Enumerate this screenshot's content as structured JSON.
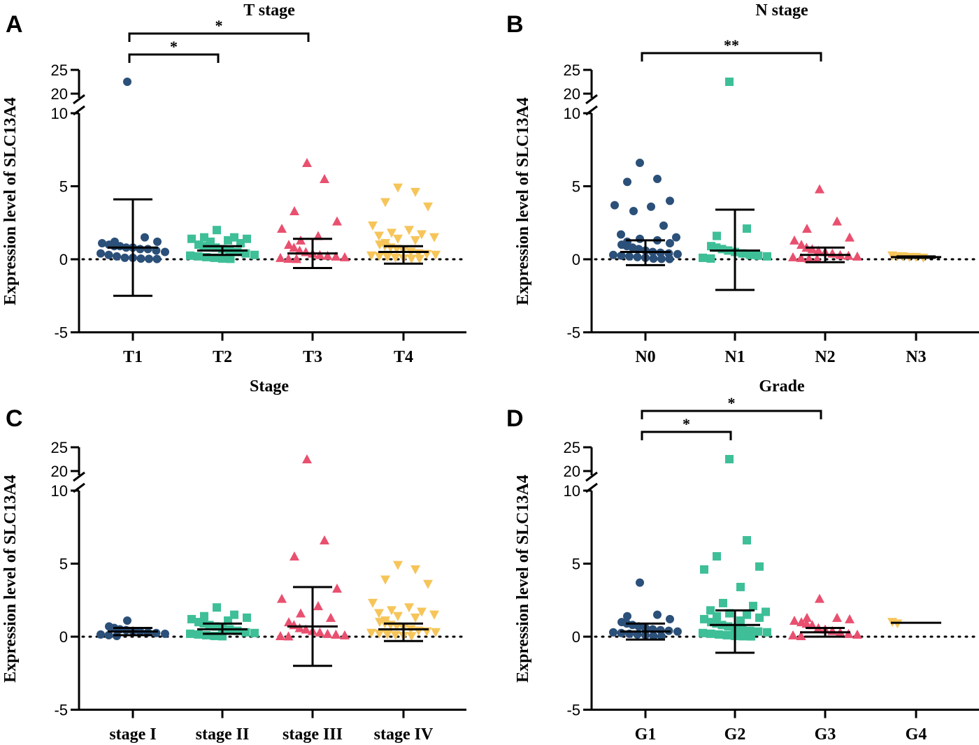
{
  "colors": {
    "group1": "#2b5079",
    "group2": "#3ebf97",
    "group3": "#e9506f",
    "group4": "#f6c55a"
  },
  "chart_data": [
    {
      "type": "scatter",
      "panel": "A",
      "title": "T stage",
      "ylabel": "Expression level of SLC13A4",
      "yticks": [
        "-5",
        "0",
        "5",
        "10",
        "20",
        "25"
      ],
      "axis_break": [
        10,
        20
      ],
      "categories": [
        "T1",
        "T2",
        "T3",
        "T4"
      ],
      "markers": [
        "circle",
        "square",
        "triangle-up",
        "triangle-down"
      ],
      "series": [
        {
          "name": "T1",
          "mean": 0.8,
          "sd_low": -2.5,
          "sd_high": 4.1,
          "points": [
            22.5,
            1.5,
            1.2,
            1.2,
            1.1,
            1.0,
            0.9,
            0.9,
            0.8,
            0.8,
            0.7,
            0.7,
            0.6,
            0.5,
            0.4,
            0.3,
            0.2,
            0.1,
            0.1,
            0.05,
            0.03,
            0.02
          ]
        },
        {
          "name": "T2",
          "mean": 0.6,
          "sd_low": 0.3,
          "sd_high": 0.9,
          "points": [
            2.0,
            1.5,
            1.5,
            1.4,
            1.4,
            1.3,
            1.2,
            1.1,
            1.0,
            0.9,
            0.9,
            0.8,
            0.7,
            0.6,
            0.5,
            0.4,
            0.3,
            0.25,
            0.2,
            0.15,
            0.1,
            0.05,
            0.03
          ]
        },
        {
          "name": "T3",
          "mean": 0.4,
          "sd_low": -0.6,
          "sd_high": 1.4,
          "points": [
            6.6,
            5.5,
            3.3,
            2.6,
            2.1,
            1.6,
            1.3,
            1.0,
            0.8,
            0.6,
            0.5,
            0.4,
            0.3,
            0.25,
            0.2,
            0.15,
            0.1,
            0.05,
            0.03
          ]
        },
        {
          "name": "T4",
          "mean": 0.5,
          "sd_low": -0.3,
          "sd_high": 0.9,
          "points": [
            4.9,
            4.6,
            3.9,
            3.6,
            2.3,
            2.0,
            1.8,
            1.7,
            1.6,
            1.5,
            1.4,
            1.3,
            1.1,
            1.0,
            0.9,
            0.8,
            0.7,
            0.6,
            0.5,
            0.4,
            0.35,
            0.3,
            0.25,
            0.2,
            0.15,
            0.1,
            0.05,
            0.03,
            0.02
          ]
        }
      ],
      "significance": [
        {
          "from": "T1",
          "to": "T2",
          "label": "*"
        },
        {
          "from": "T1",
          "to": "T3",
          "label": "*"
        }
      ]
    },
    {
      "type": "scatter",
      "panel": "B",
      "title": "N stage",
      "ylabel": "Expression level of SLC13A4",
      "yticks": [
        "-5",
        "0",
        "5",
        "10",
        "20",
        "25"
      ],
      "axis_break": [
        10,
        20
      ],
      "categories": [
        "N0",
        "N1",
        "N2",
        "N3"
      ],
      "markers": [
        "circle",
        "square",
        "triangle-up",
        "triangle-down"
      ],
      "series": [
        {
          "name": "N0",
          "mean": 0.5,
          "sd_low": -0.4,
          "sd_high": 1.3,
          "points": [
            6.6,
            5.5,
            5.3,
            4.0,
            3.7,
            3.6,
            3.3,
            2.3,
            1.7,
            1.5,
            1.4,
            1.3,
            1.2,
            1.1,
            1.0,
            0.9,
            0.8,
            0.7,
            0.6,
            0.5,
            0.45,
            0.4,
            0.35,
            0.3,
            0.25,
            0.2,
            0.15,
            0.1,
            0.05,
            0.03,
            0.02
          ]
        },
        {
          "name": "N1",
          "mean": 0.6,
          "sd_low": -2.1,
          "sd_high": 3.4,
          "points": [
            22.5,
            2.1,
            1.6,
            0.9,
            0.8,
            0.7,
            0.6,
            0.5,
            0.4,
            0.3,
            0.25,
            0.2,
            0.1,
            0.05
          ]
        },
        {
          "name": "N2",
          "mean": 0.3,
          "sd_low": -0.2,
          "sd_high": 0.8,
          "points": [
            4.8,
            2.6,
            2.1,
            1.5,
            1.3,
            1.0,
            0.8,
            0.7,
            0.6,
            0.5,
            0.4,
            0.3,
            0.25,
            0.2,
            0.15,
            0.1,
            0.05,
            0.03
          ]
        },
        {
          "name": "N3",
          "mean": 0.15,
          "sd_low": 0.1,
          "sd_high": 0.2,
          "points": [
            0.25,
            0.2,
            0.2,
            0.15,
            0.15,
            0.1
          ]
        }
      ],
      "significance": [
        {
          "from": "N0",
          "to": "N2",
          "label": "**"
        }
      ]
    },
    {
      "type": "scatter",
      "panel": "C",
      "title": "Stage",
      "ylabel": "Expression level of SLC13A4",
      "yticks": [
        "-5",
        "0",
        "5",
        "10",
        "20",
        "25"
      ],
      "axis_break": [
        10,
        20
      ],
      "categories": [
        "stage I",
        "stage II",
        "stage III",
        "stage IV"
      ],
      "markers": [
        "circle",
        "square",
        "triangle-up",
        "triangle-down"
      ],
      "series": [
        {
          "name": "stage I",
          "mean": 0.35,
          "sd_low": 0.1,
          "sd_high": 0.6,
          "points": [
            1.1,
            0.7,
            0.6,
            0.5,
            0.45,
            0.4,
            0.35,
            0.3,
            0.25,
            0.2,
            0.15,
            0.1,
            0.05
          ]
        },
        {
          "name": "stage II",
          "mean": 0.5,
          "sd_low": 0.2,
          "sd_high": 0.9,
          "points": [
            2.0,
            1.5,
            1.4,
            1.3,
            1.2,
            1.1,
            1.0,
            0.9,
            0.8,
            0.7,
            0.6,
            0.5,
            0.4,
            0.3,
            0.25,
            0.2,
            0.15,
            0.1,
            0.05,
            0.03
          ]
        },
        {
          "name": "stage III",
          "mean": 0.7,
          "sd_low": -2.0,
          "sd_high": 3.4,
          "points": [
            22.5,
            6.6,
            5.5,
            3.3,
            2.6,
            2.1,
            1.6,
            1.3,
            1.0,
            0.8,
            0.6,
            0.5,
            0.4,
            0.3,
            0.2,
            0.15,
            0.1,
            0.05,
            0.03
          ]
        },
        {
          "name": "stage IV",
          "mean": 0.5,
          "sd_low": -0.3,
          "sd_high": 0.9,
          "points": [
            4.9,
            4.6,
            3.9,
            3.6,
            2.3,
            2.0,
            1.8,
            1.7,
            1.6,
            1.5,
            1.4,
            1.3,
            1.1,
            1.0,
            0.9,
            0.8,
            0.7,
            0.6,
            0.5,
            0.4,
            0.35,
            0.3,
            0.25,
            0.2,
            0.15,
            0.1,
            0.05,
            0.03
          ]
        }
      ],
      "significance": []
    },
    {
      "type": "scatter",
      "panel": "D",
      "title": "Grade",
      "ylabel": "Expression level of SLC13A4",
      "yticks": [
        "-5",
        "0",
        "5",
        "10",
        "20",
        "25"
      ],
      "axis_break": [
        10,
        20
      ],
      "categories": [
        "G1",
        "G2",
        "G3",
        "G4"
      ],
      "markers": [
        "circle",
        "square",
        "triangle-up",
        "triangle-down"
      ],
      "series": [
        {
          "name": "G1",
          "mean": 0.35,
          "sd_low": -0.2,
          "sd_high": 0.9,
          "points": [
            3.7,
            1.5,
            1.4,
            1.2,
            1.0,
            0.9,
            0.8,
            0.7,
            0.6,
            0.5,
            0.45,
            0.4,
            0.35,
            0.3,
            0.25,
            0.2,
            0.15,
            0.1,
            0.05,
            0.03
          ]
        },
        {
          "name": "G2",
          "mean": 0.8,
          "sd_low": -1.1,
          "sd_high": 1.8,
          "points": [
            22.5,
            6.6,
            5.5,
            4.8,
            4.6,
            3.4,
            2.3,
            2.1,
            1.8,
            1.7,
            1.6,
            1.5,
            1.4,
            1.3,
            1.2,
            1.1,
            1.0,
            0.9,
            0.8,
            0.7,
            0.6,
            0.5,
            0.4,
            0.35,
            0.3,
            0.25,
            0.2,
            0.15,
            0.1,
            0.05,
            0.03,
            0.02
          ]
        },
        {
          "name": "G3",
          "mean": 0.3,
          "sd_low": 0.0,
          "sd_high": 0.6,
          "points": [
            2.6,
            1.3,
            1.3,
            1.2,
            1.1,
            1.0,
            0.9,
            0.8,
            0.6,
            0.5,
            0.4,
            0.3,
            0.2,
            0.15,
            0.1,
            0.05
          ]
        },
        {
          "name": "G4",
          "mean": 0.95,
          "sd_low": 0.95,
          "sd_high": 0.95,
          "points": [
            1.0,
            0.9
          ]
        }
      ],
      "significance": [
        {
          "from": "G1",
          "to": "G2",
          "label": "*"
        },
        {
          "from": "G1",
          "to": "G3",
          "label": "*"
        }
      ]
    }
  ]
}
